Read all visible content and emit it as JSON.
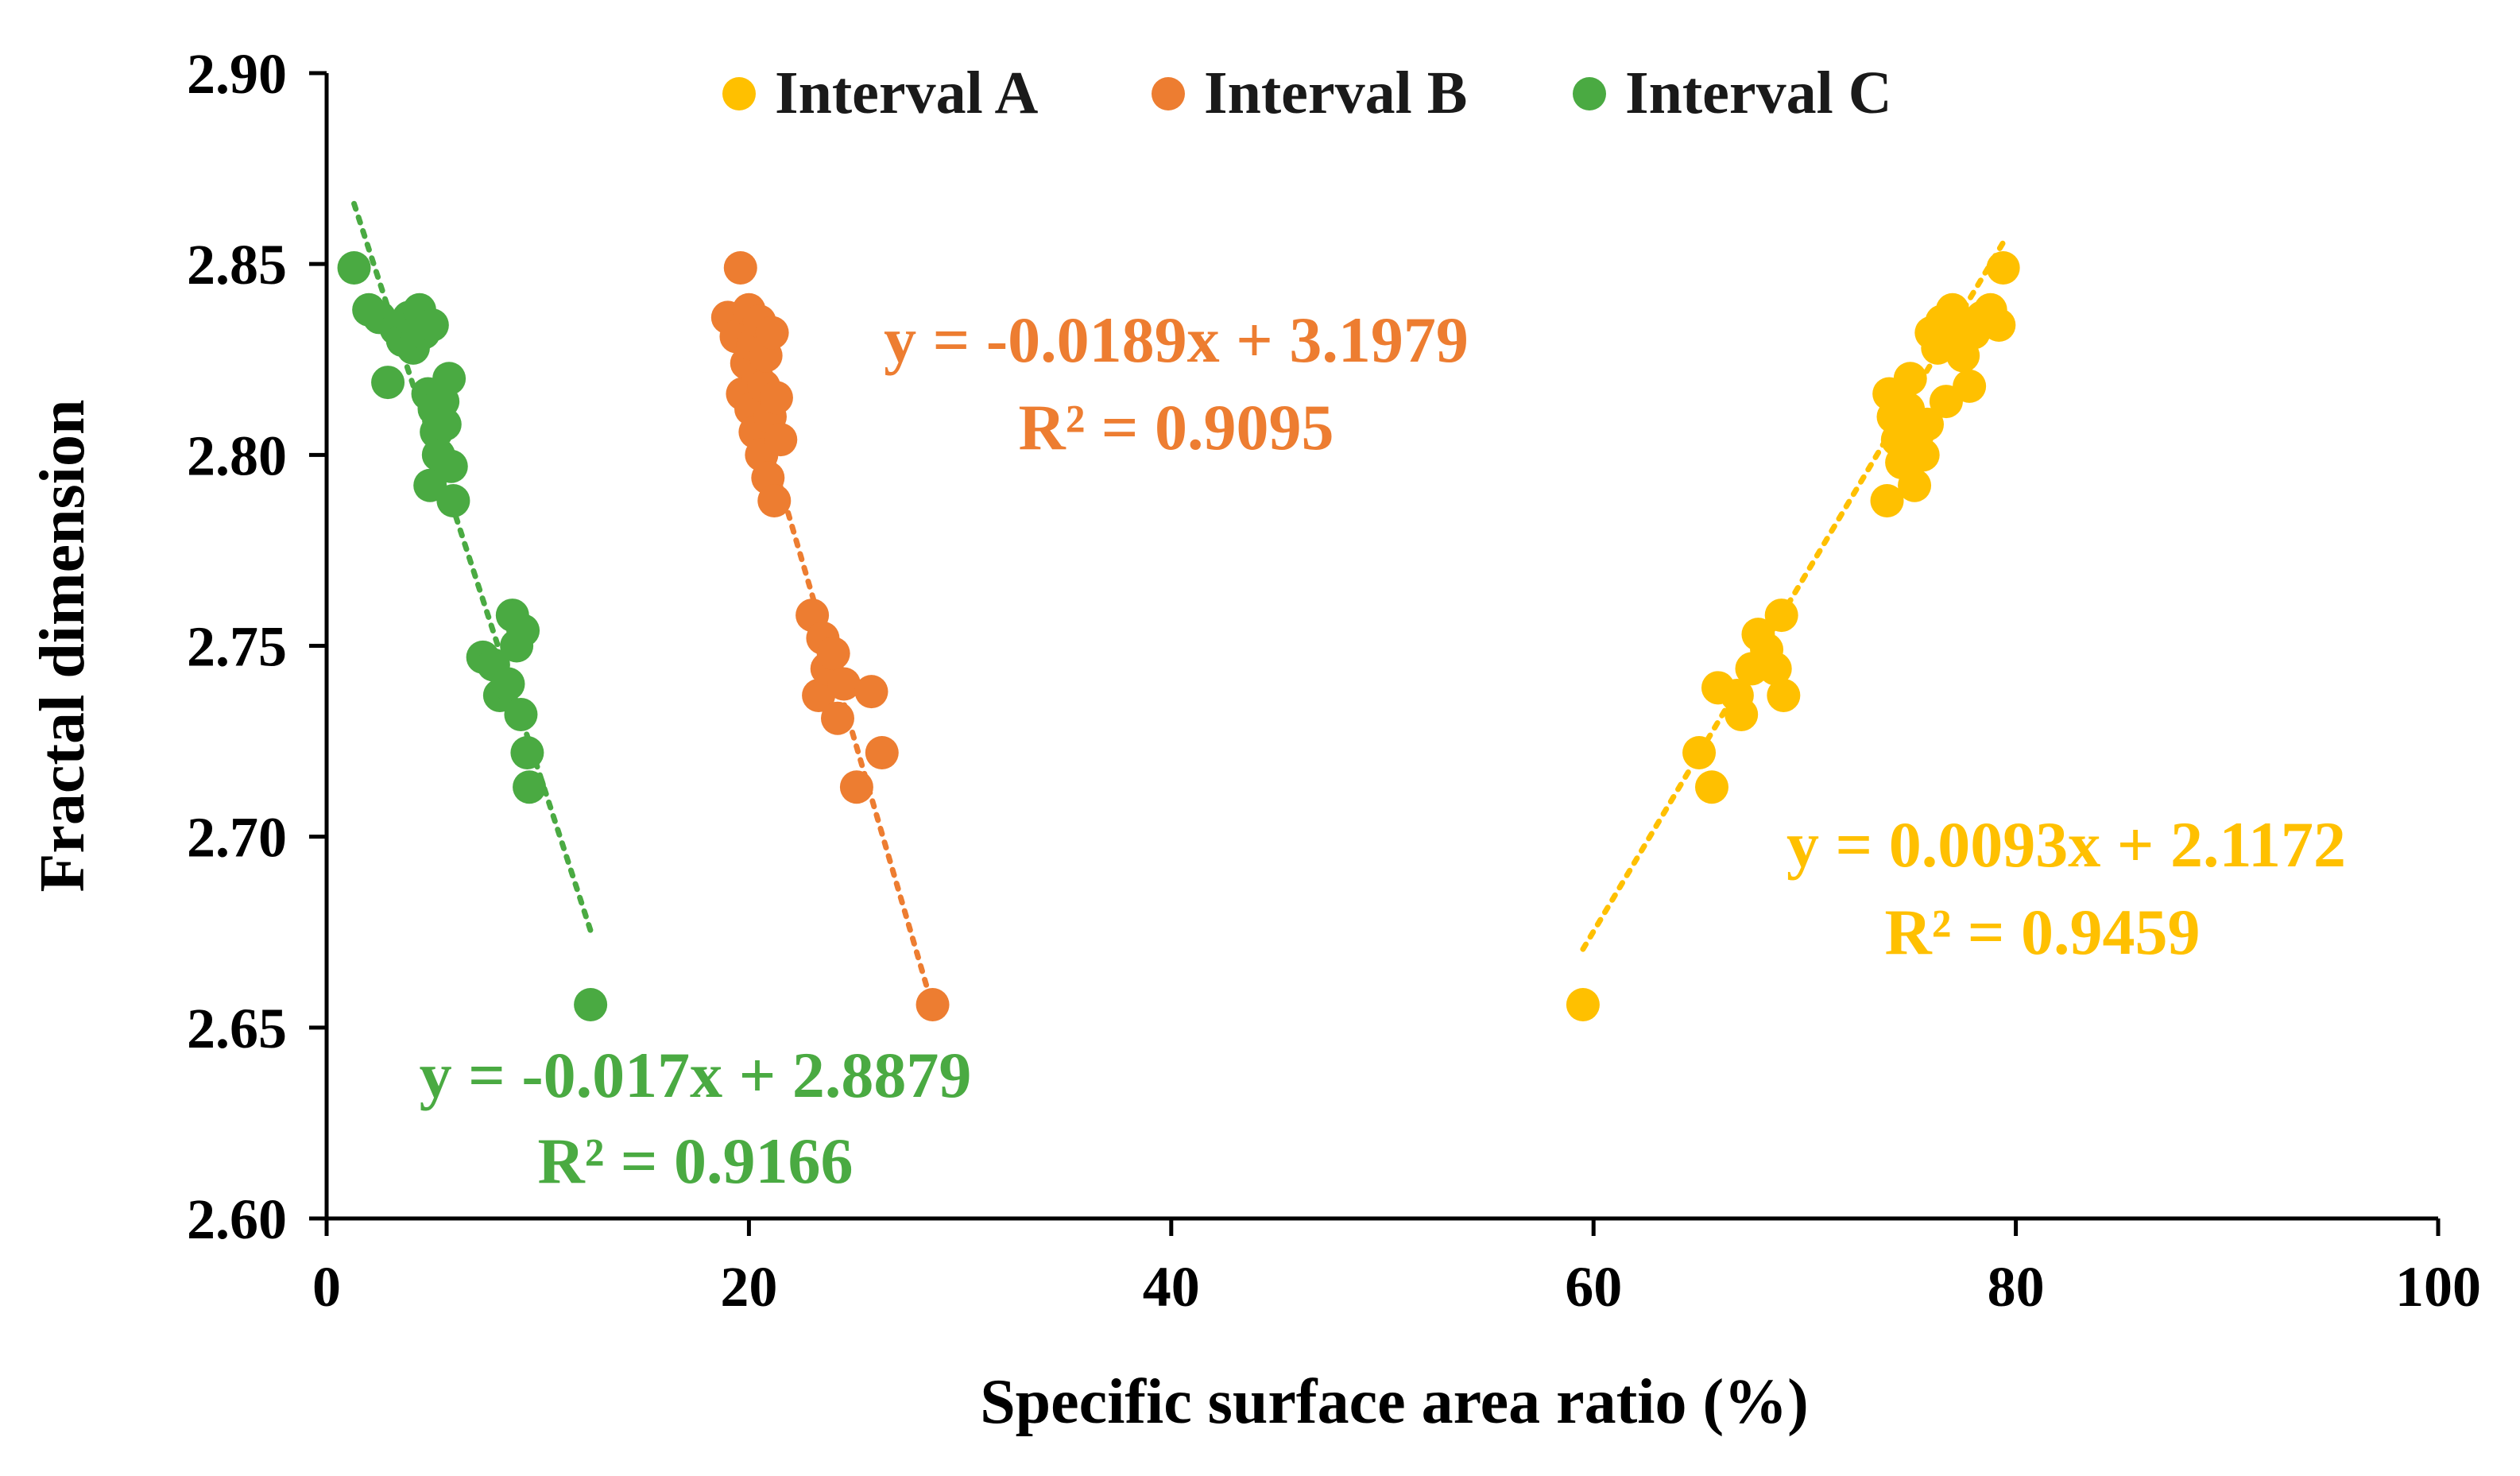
{
  "chart_data": {
    "type": "scatter",
    "title": "",
    "xlabel": "Specific surface area ratio (%)",
    "ylabel": "Fractal dimension",
    "xlim": [
      0,
      100
    ],
    "ylim": [
      2.6,
      2.9
    ],
    "x_ticks": [
      0,
      20,
      40,
      60,
      80,
      100
    ],
    "x_tick_labels": [
      "0",
      "20",
      "40",
      "60",
      "80",
      "100"
    ],
    "y_ticks": [
      2.6,
      2.65,
      2.7,
      2.75,
      2.8,
      2.85,
      2.9
    ],
    "y_tick_labels": [
      "2.60",
      "2.65",
      "2.70",
      "2.75",
      "2.80",
      "2.85",
      "2.90"
    ],
    "grid": false,
    "legend_position": "top",
    "series": [
      {
        "name": "Interval A",
        "color": "#FFC000",
        "trendline": {
          "slope": 0.0093,
          "intercept": 2.1172,
          "x_range": [
            59.5,
            79.5
          ]
        },
        "equation": "y = 0.0093x + 2.1172",
        "r_squared": "R² = 0.9459",
        "points": [
          [
            59.5,
            2.656
          ],
          [
            65.0,
            2.722
          ],
          [
            65.6,
            2.713
          ],
          [
            65.9,
            2.739
          ],
          [
            66.8,
            2.737
          ],
          [
            67.0,
            2.732
          ],
          [
            67.5,
            2.744
          ],
          [
            67.8,
            2.753
          ],
          [
            68.2,
            2.749
          ],
          [
            68.6,
            2.744
          ],
          [
            68.9,
            2.758
          ],
          [
            69.0,
            2.737
          ],
          [
            73.9,
            2.788
          ],
          [
            74.0,
            2.816
          ],
          [
            74.2,
            2.81
          ],
          [
            74.4,
            2.804
          ],
          [
            74.6,
            2.798
          ],
          [
            74.9,
            2.812
          ],
          [
            75.0,
            2.82
          ],
          [
            75.2,
            2.792
          ],
          [
            75.4,
            2.806
          ],
          [
            75.6,
            2.8
          ],
          [
            75.8,
            2.808
          ],
          [
            76.0,
            2.832
          ],
          [
            76.3,
            2.828
          ],
          [
            76.5,
            2.835
          ],
          [
            76.7,
            2.814
          ],
          [
            77.0,
            2.838
          ],
          [
            77.2,
            2.83
          ],
          [
            77.5,
            2.826
          ],
          [
            77.8,
            2.818
          ],
          [
            78.0,
            2.832
          ],
          [
            78.4,
            2.836
          ],
          [
            78.8,
            2.838
          ],
          [
            79.2,
            2.834
          ],
          [
            79.4,
            2.849
          ]
        ]
      },
      {
        "name": "Interval B",
        "color": "#ED7D31",
        "trendline": {
          "slope": -0.0189,
          "intercept": 3.1979,
          "x_range": [
            19.0,
            28.7
          ]
        },
        "equation": "y = -0.0189x + 3.1979",
        "r_squared": "R² = 0.9095",
        "points": [
          [
            19.0,
            2.836
          ],
          [
            19.4,
            2.831
          ],
          [
            19.6,
            2.849
          ],
          [
            19.7,
            2.816
          ],
          [
            19.9,
            2.824
          ],
          [
            20.0,
            2.838
          ],
          [
            20.1,
            2.812
          ],
          [
            20.2,
            2.829
          ],
          [
            20.3,
            2.806
          ],
          [
            20.4,
            2.82
          ],
          [
            20.5,
            2.835
          ],
          [
            20.6,
            2.8
          ],
          [
            20.7,
            2.818
          ],
          [
            20.8,
            2.826
          ],
          [
            20.9,
            2.794
          ],
          [
            21.0,
            2.81
          ],
          [
            21.1,
            2.832
          ],
          [
            21.2,
            2.788
          ],
          [
            21.3,
            2.815
          ],
          [
            21.5,
            2.804
          ],
          [
            23.0,
            2.758
          ],
          [
            23.3,
            2.737
          ],
          [
            23.5,
            2.752
          ],
          [
            23.7,
            2.744
          ],
          [
            24.0,
            2.748
          ],
          [
            24.2,
            2.731
          ],
          [
            24.5,
            2.74
          ],
          [
            25.1,
            2.713
          ],
          [
            25.8,
            2.738
          ],
          [
            26.3,
            2.722
          ],
          [
            28.7,
            2.656
          ]
        ]
      },
      {
        "name": "Interval C",
        "color": "#4AAA42",
        "trendline": {
          "slope": -0.017,
          "intercept": 2.8879,
          "x_range": [
            1.3,
            12.5
          ]
        },
        "equation": "y = -0.017x + 2.8879",
        "r_squared": "R² = 0.9166",
        "points": [
          [
            1.3,
            2.849
          ],
          [
            2.0,
            2.838
          ],
          [
            2.5,
            2.836
          ],
          [
            2.9,
            2.819
          ],
          [
            3.3,
            2.833
          ],
          [
            3.6,
            2.83
          ],
          [
            3.9,
            2.836
          ],
          [
            4.1,
            2.828
          ],
          [
            4.4,
            2.838
          ],
          [
            4.6,
            2.832
          ],
          [
            4.8,
            2.816
          ],
          [
            4.9,
            2.792
          ],
          [
            5.0,
            2.834
          ],
          [
            5.1,
            2.812
          ],
          [
            5.2,
            2.806
          ],
          [
            5.3,
            2.8
          ],
          [
            5.5,
            2.814
          ],
          [
            5.6,
            2.808
          ],
          [
            5.8,
            2.82
          ],
          [
            5.9,
            2.797
          ],
          [
            6.0,
            2.788
          ],
          [
            7.4,
            2.747
          ],
          [
            7.9,
            2.745
          ],
          [
            8.2,
            2.737
          ],
          [
            8.6,
            2.74
          ],
          [
            8.8,
            2.758
          ],
          [
            9.0,
            2.75
          ],
          [
            9.2,
            2.732
          ],
          [
            9.3,
            2.754
          ],
          [
            9.5,
            2.722
          ],
          [
            9.6,
            2.713
          ],
          [
            12.5,
            2.656
          ]
        ]
      }
    ]
  }
}
